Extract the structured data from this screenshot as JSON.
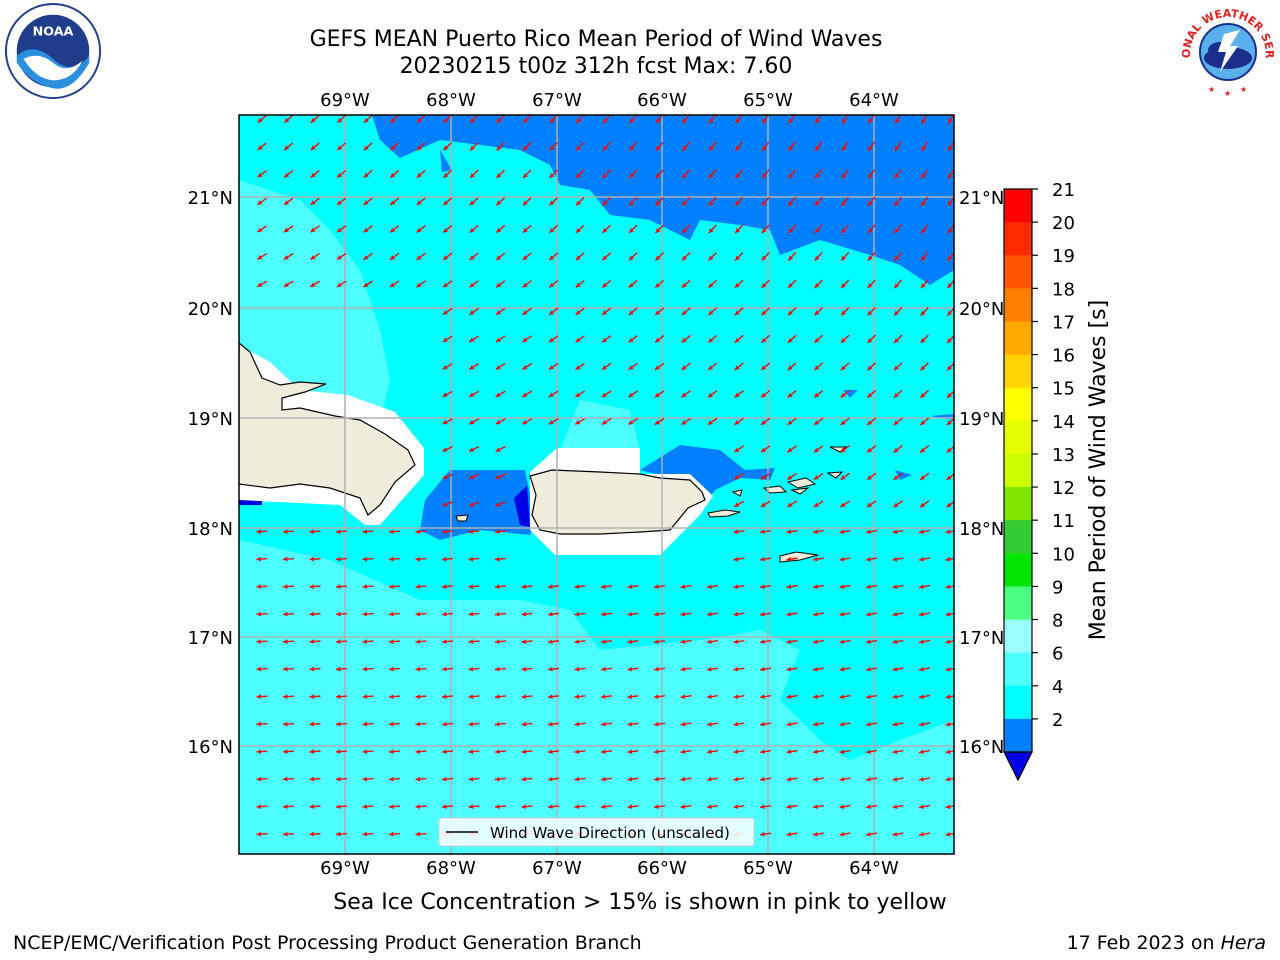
{
  "header": {
    "title_line1": "GEFS MEAN Puerto Rico Mean Period of Wind Waves",
    "title_line2": "20230215 t00z 312h fcst   Max: 7.60"
  },
  "logos": {
    "left": {
      "icon": "noaa-logo-icon",
      "text": "NOAA"
    },
    "right": {
      "icon": "nws-logo-icon",
      "text": "NATIONAL WEATHER SERVICE"
    }
  },
  "map": {
    "lon_labels": [
      "69°W",
      "68°W",
      "67°W",
      "66°W",
      "65°W",
      "64°W"
    ],
    "lat_labels": [
      "21°N",
      "20°N",
      "19°N",
      "18°N",
      "17°N",
      "16°N"
    ],
    "legend_label": "Wind Wave Direction (unscaled)",
    "arrow_color": "#e81010",
    "land_color": "#efecdc"
  },
  "colorbar": {
    "label": "Mean Period of Wind Waves [s]",
    "ticks": [
      "21",
      "20",
      "19",
      "18",
      "17",
      "16",
      "15",
      "14",
      "13",
      "12",
      "11",
      "10",
      "9",
      "8",
      "6",
      "4",
      "2"
    ],
    "colors": [
      "#ff0000",
      "#ff2a00",
      "#ff5500",
      "#ff8000",
      "#ffaa00",
      "#ffd400",
      "#ffff00",
      "#e6ff00",
      "#ccff00",
      "#80e600",
      "#33cc33",
      "#00e600",
      "#4dff80",
      "#99ffff",
      "#4dffff",
      "#00ffff",
      "#007fff"
    ],
    "under_color": "#0000e6"
  },
  "footer": {
    "sea_ice_note": "Sea Ice Concentration > 15% is shown in pink to yellow",
    "left": "NCEP/EMC/Verification Post Processing Product Generation Branch",
    "date": "17 Feb 2023 on ",
    "host": "Hera"
  }
}
